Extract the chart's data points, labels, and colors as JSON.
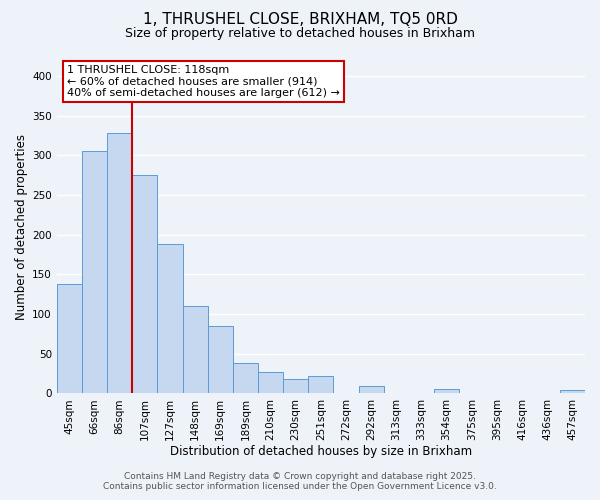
{
  "title": "1, THRUSHEL CLOSE, BRIXHAM, TQ5 0RD",
  "subtitle": "Size of property relative to detached houses in Brixham",
  "xlabel": "Distribution of detached houses by size in Brixham",
  "ylabel": "Number of detached properties",
  "bar_labels": [
    "45sqm",
    "66sqm",
    "86sqm",
    "107sqm",
    "127sqm",
    "148sqm",
    "169sqm",
    "189sqm",
    "210sqm",
    "230sqm",
    "251sqm",
    "272sqm",
    "292sqm",
    "313sqm",
    "333sqm",
    "354sqm",
    "375sqm",
    "395sqm",
    "416sqm",
    "436sqm",
    "457sqm"
  ],
  "bar_values": [
    138,
    305,
    328,
    275,
    188,
    110,
    85,
    38,
    27,
    18,
    22,
    0,
    9,
    0,
    0,
    5,
    0,
    0,
    0,
    0,
    4
  ],
  "bar_color": "#c5d8f0",
  "bar_edge_color": "#5b9bd5",
  "property_line_x": 3,
  "property_line_color": "#cc0000",
  "ylim": [
    0,
    420
  ],
  "yticks": [
    0,
    50,
    100,
    150,
    200,
    250,
    300,
    350,
    400
  ],
  "annotation_title": "1 THRUSHEL CLOSE: 118sqm",
  "annotation_line1": "← 60% of detached houses are smaller (914)",
  "annotation_line2": "40% of semi-detached houses are larger (612) →",
  "annotation_box_color": "#ffffff",
  "annotation_box_edge": "#cc0000",
  "footer_line1": "Contains HM Land Registry data © Crown copyright and database right 2025.",
  "footer_line2": "Contains public sector information licensed under the Open Government Licence v3.0.",
  "background_color": "#eef2f9",
  "grid_color": "#ffffff",
  "title_fontsize": 11,
  "subtitle_fontsize": 9,
  "axis_label_fontsize": 8.5,
  "tick_fontsize": 7.5,
  "annotation_fontsize": 8,
  "footer_fontsize": 6.5
}
